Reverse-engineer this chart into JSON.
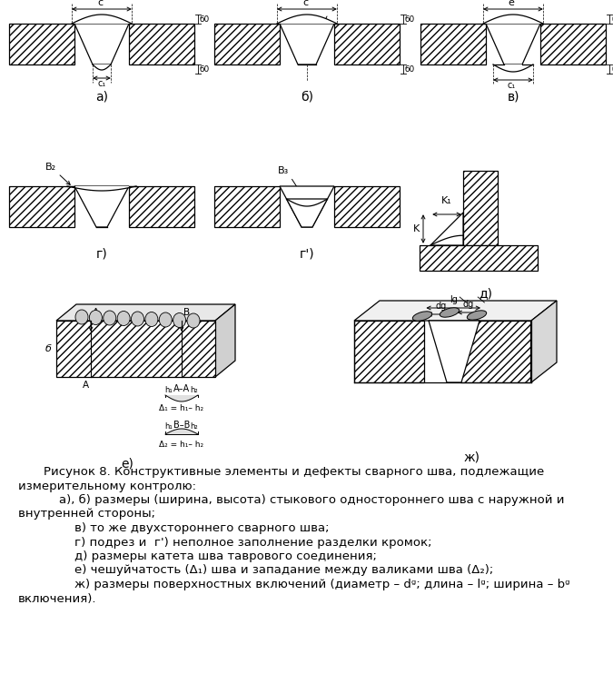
{
  "caption_title": "Рисунок 8. Конструктивные элементы и дефекты сварного шва, подлежащие",
  "caption_line2": "измерительному контролю:",
  "caption_a": "    а), б) размеры (ширина, высота) стыкового одностороннего шва с наружной и",
  "caption_a2": "внутренней стороны;",
  "caption_v": "        в) то же двухстороннего сварного шва;",
  "caption_g": "        г) подрез и  г') неполное заполнение разделки кромок;",
  "caption_d": "        д) размеры катета шва таврового соединения;",
  "caption_e": "        е) чешуйчатость (Δ₁) шва и западание между валиками шва (Δ₂);",
  "caption_zh": "        ж) размеры поверхностных включений (диаметр – dᵍ; длина – lᵍ; ширина – bᵍ",
  "caption_zh2": "включения).",
  "bg_color": "#ffffff"
}
